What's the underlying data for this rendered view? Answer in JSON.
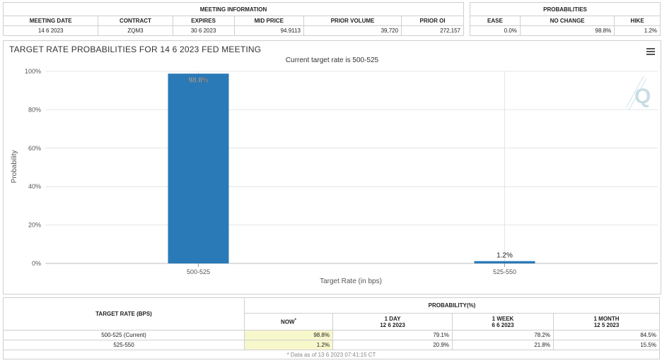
{
  "meeting": {
    "header": "MEETING INFORMATION",
    "columns": [
      "MEETING DATE",
      "CONTRACT",
      "EXPIRES",
      "MID PRICE",
      "PRIOR VOLUME",
      "PRIOR OI"
    ],
    "row": [
      "14 6 2023",
      "ZQM3",
      "30 6 2023",
      "94.9113",
      "39,720",
      "272,157"
    ]
  },
  "probabilities": {
    "header": "PROBABILITIES",
    "columns": [
      "EASE",
      "NO CHANGE",
      "HIKE"
    ],
    "row": [
      "0.0%",
      "98.8%",
      "1.2%"
    ]
  },
  "chart_data": {
    "type": "bar",
    "title": "TARGET RATE PROBABILITIES FOR 14 6 2023 FED MEETING",
    "subtitle": "Current target rate is 500-525",
    "xlabel": "Target Rate (in bps)",
    "ylabel": "Probability",
    "categories": [
      "500-525",
      "525-550"
    ],
    "values": [
      98.8,
      1.2
    ],
    "data_labels": [
      "98.8%",
      "1.2%"
    ],
    "ylim": [
      0,
      100
    ],
    "yticks": [
      0,
      20,
      40,
      60,
      80,
      100
    ],
    "ytick_labels": [
      "0%",
      "20%",
      "40%",
      "60%",
      "80%",
      "100%"
    ],
    "bar_color": "#2a7ab8",
    "grid": true
  },
  "bottom_table": {
    "target_header": "TARGET RATE (BPS)",
    "prob_header": "PROBABILITY(%)",
    "columns": [
      {
        "label": "NOW",
        "sub": "",
        "marker": "*"
      },
      {
        "label": "1 DAY",
        "sub": "12 6 2023"
      },
      {
        "label": "1 WEEK",
        "sub": "6 6 2023"
      },
      {
        "label": "1 MONTH",
        "sub": "12 5 2023"
      }
    ],
    "rows": [
      {
        "rate": "500-525 (Current)",
        "values": [
          "98.8%",
          "79.1%",
          "78.2%",
          "84.5%"
        ]
      },
      {
        "rate": "525-550",
        "values": [
          "1.2%",
          "20.9%",
          "21.8%",
          "15.5%"
        ]
      }
    ],
    "footnote": "* Data as of 13 6 2023 07:41:15 CT"
  }
}
